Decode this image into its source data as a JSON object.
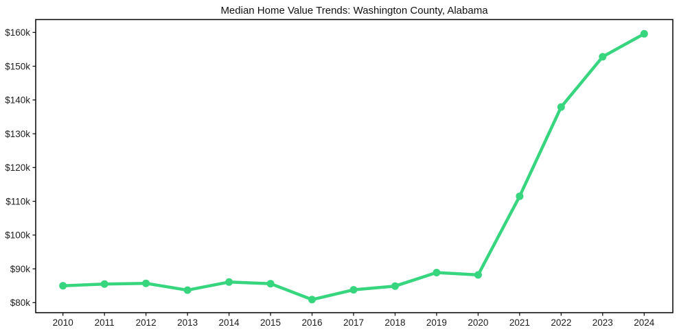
{
  "chart_data": {
    "type": "line",
    "title": "Median Home Value Trends: Washington County, Alabama",
    "categories": [
      "2010",
      "2011",
      "2012",
      "2013",
      "2014",
      "2015",
      "2016",
      "2017",
      "2018",
      "2019",
      "2020",
      "2021",
      "2022",
      "2023",
      "2024"
    ],
    "values_usd": [
      85000,
      85500,
      85700,
      83700,
      86100,
      85600,
      80900,
      83800,
      84900,
      88900,
      88200,
      111500,
      137900,
      152800,
      159600
    ],
    "y_ticks": [
      {
        "value_usd": 80000,
        "label": "$80k"
      },
      {
        "value_usd": 90000,
        "label": "$90k"
      },
      {
        "value_usd": 100000,
        "label": "$100k"
      },
      {
        "value_usd": 110000,
        "label": "$110k"
      },
      {
        "value_usd": 120000,
        "label": "$120k"
      },
      {
        "value_usd": 130000,
        "label": "$130k"
      },
      {
        "value_usd": 140000,
        "label": "$140k"
      },
      {
        "value_usd": 150000,
        "label": "$150k"
      },
      {
        "value_usd": 160000,
        "label": "$160k"
      }
    ],
    "ylim_usd": [
      77000,
      163800
    ],
    "grid": false,
    "style": {
      "line_color": "#38d57f",
      "marker": "circle",
      "marker_radius": 5.5,
      "line_width": 4.5,
      "axis_color": "#000000",
      "background": "#ffffff"
    }
  }
}
